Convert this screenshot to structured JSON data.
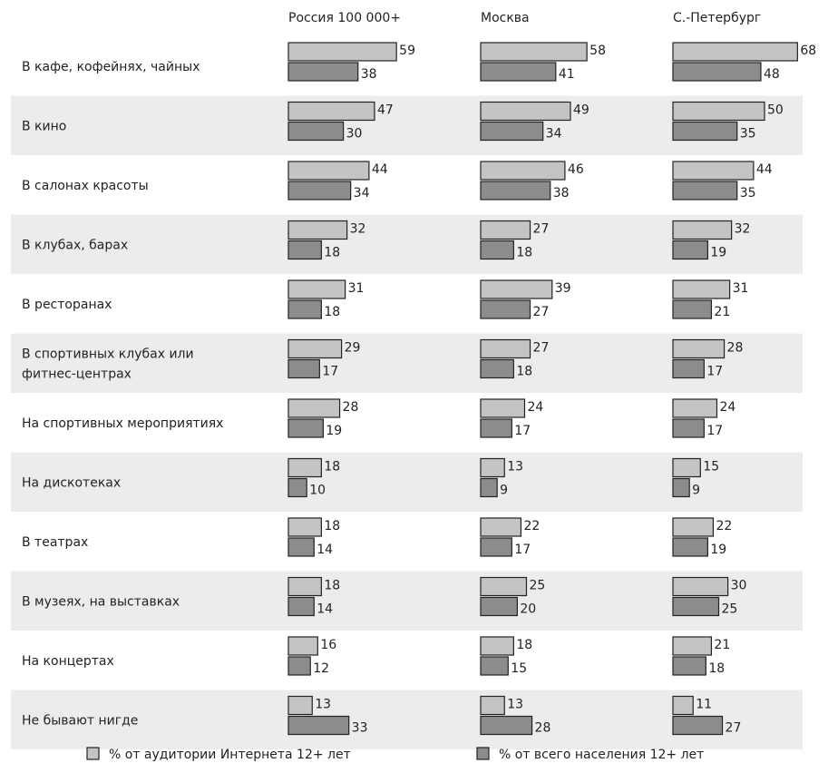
{
  "chart_data": {
    "type": "bar",
    "orientation": "horizontal",
    "panels": [
      "Россия 100 000+",
      "Москва",
      "С.-Петербург"
    ],
    "categories": [
      "В кафе, кофейнях, чайных",
      "В кино",
      "В салонах красоты",
      "В клубах, барах",
      "В ресторанах",
      "В спортивных клубах или фитнес-центрах",
      "На спортивных мероприятиях",
      "На дискотеках",
      "В театрах",
      "В музеях, на выставках",
      "На концертах",
      "Не бывают нигде"
    ],
    "category_lines": [
      [
        "В кафе, кофейнях, чайных"
      ],
      [
        "В кино"
      ],
      [
        "В салонах красоты"
      ],
      [
        "В клубах, барах"
      ],
      [
        "В ресторанах"
      ],
      [
        "В спортивных клубах или",
        "фитнес-центрах"
      ],
      [
        "На спортивных мероприятиях"
      ],
      [
        "На дискотеках"
      ],
      [
        "В театрах"
      ],
      [
        "В музеях, на выставках"
      ],
      [
        "На концертах"
      ],
      [
        "Не бывают нигде"
      ]
    ],
    "series": [
      {
        "name": "% от аудитории Интернета 12+ лет",
        "color": "#c4c4c4",
        "values": [
          [
            59,
            47,
            44,
            32,
            31,
            29,
            28,
            18,
            18,
            18,
            16,
            13
          ],
          [
            58,
            49,
            46,
            27,
            39,
            27,
            24,
            13,
            22,
            25,
            18,
            13
          ],
          [
            68,
            50,
            44,
            32,
            31,
            28,
            24,
            15,
            22,
            30,
            21,
            11
          ]
        ]
      },
      {
        "name": "% от всего населения 12+ лет",
        "color": "#8c8c8c",
        "values": [
          [
            38,
            30,
            34,
            18,
            18,
            17,
            19,
            10,
            14,
            14,
            12,
            33
          ],
          [
            41,
            34,
            38,
            18,
            27,
            18,
            17,
            9,
            17,
            20,
            15,
            28
          ],
          [
            48,
            35,
            35,
            19,
            21,
            17,
            17,
            9,
            19,
            25,
            18,
            27
          ]
        ]
      }
    ],
    "row_band_color": "#ececec",
    "bar_border_color": "#222222",
    "legend_position": "bottom"
  }
}
